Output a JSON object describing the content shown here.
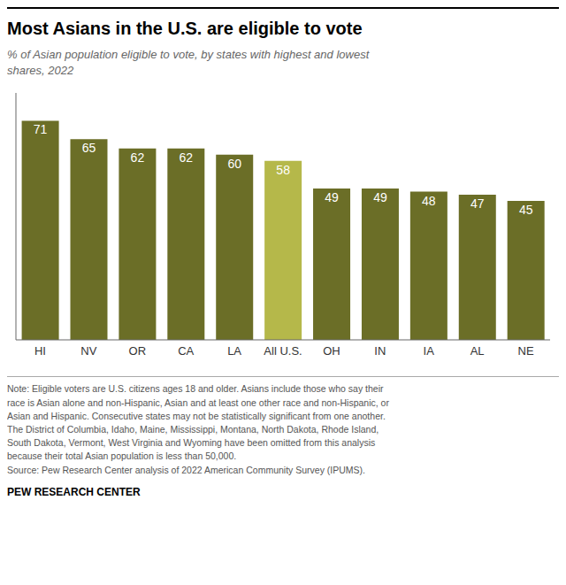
{
  "chart_data": {
    "type": "bar",
    "title": "Most Asians in the U.S. are eligible to vote",
    "subtitle": "% of Asian population eligible to vote, by states with highest and lowest\nshares, 2022",
    "categories": [
      "HI",
      "NV",
      "OR",
      "CA",
      "LA",
      "All U.S.",
      "OH",
      "IN",
      "IA",
      "AL",
      "NE"
    ],
    "values": [
      71,
      65,
      62,
      62,
      60,
      58,
      49,
      49,
      48,
      47,
      45
    ],
    "colors": [
      "#6b6e27",
      "#6b6e27",
      "#6b6e27",
      "#6b6e27",
      "#6b6e27",
      "#b5b84a",
      "#6b6e27",
      "#6b6e27",
      "#6b6e27",
      "#6b6e27",
      "#6b6e27"
    ],
    "ylim": [
      0,
      80
    ],
    "grid": false,
    "data_labels": true,
    "tick_labels": "x",
    "annotations": [
      "Note: Eligible voters are U.S. citizens ages 18 and older. Asians include those who say their\nrace is Asian alone and non-Hispanic, Asian and at least one other race and non-Hispanic, or\nAsian and Hispanic. Consecutive states may not be statistically significant from one another.\nThe District of Columbia, Idaho, Maine, Mississippi, Montana, North Dakota, Rhode Island,\nSouth Dakota, Vermont, West Virginia and Wyoming have been omitted from this analysis\nbecause their total Asian population is less than 50,000.\nSource: Pew Research Center analysis of 2022 American Community Survey (IPUMS).",
      "PEW RESEARCH CENTER"
    ]
  }
}
